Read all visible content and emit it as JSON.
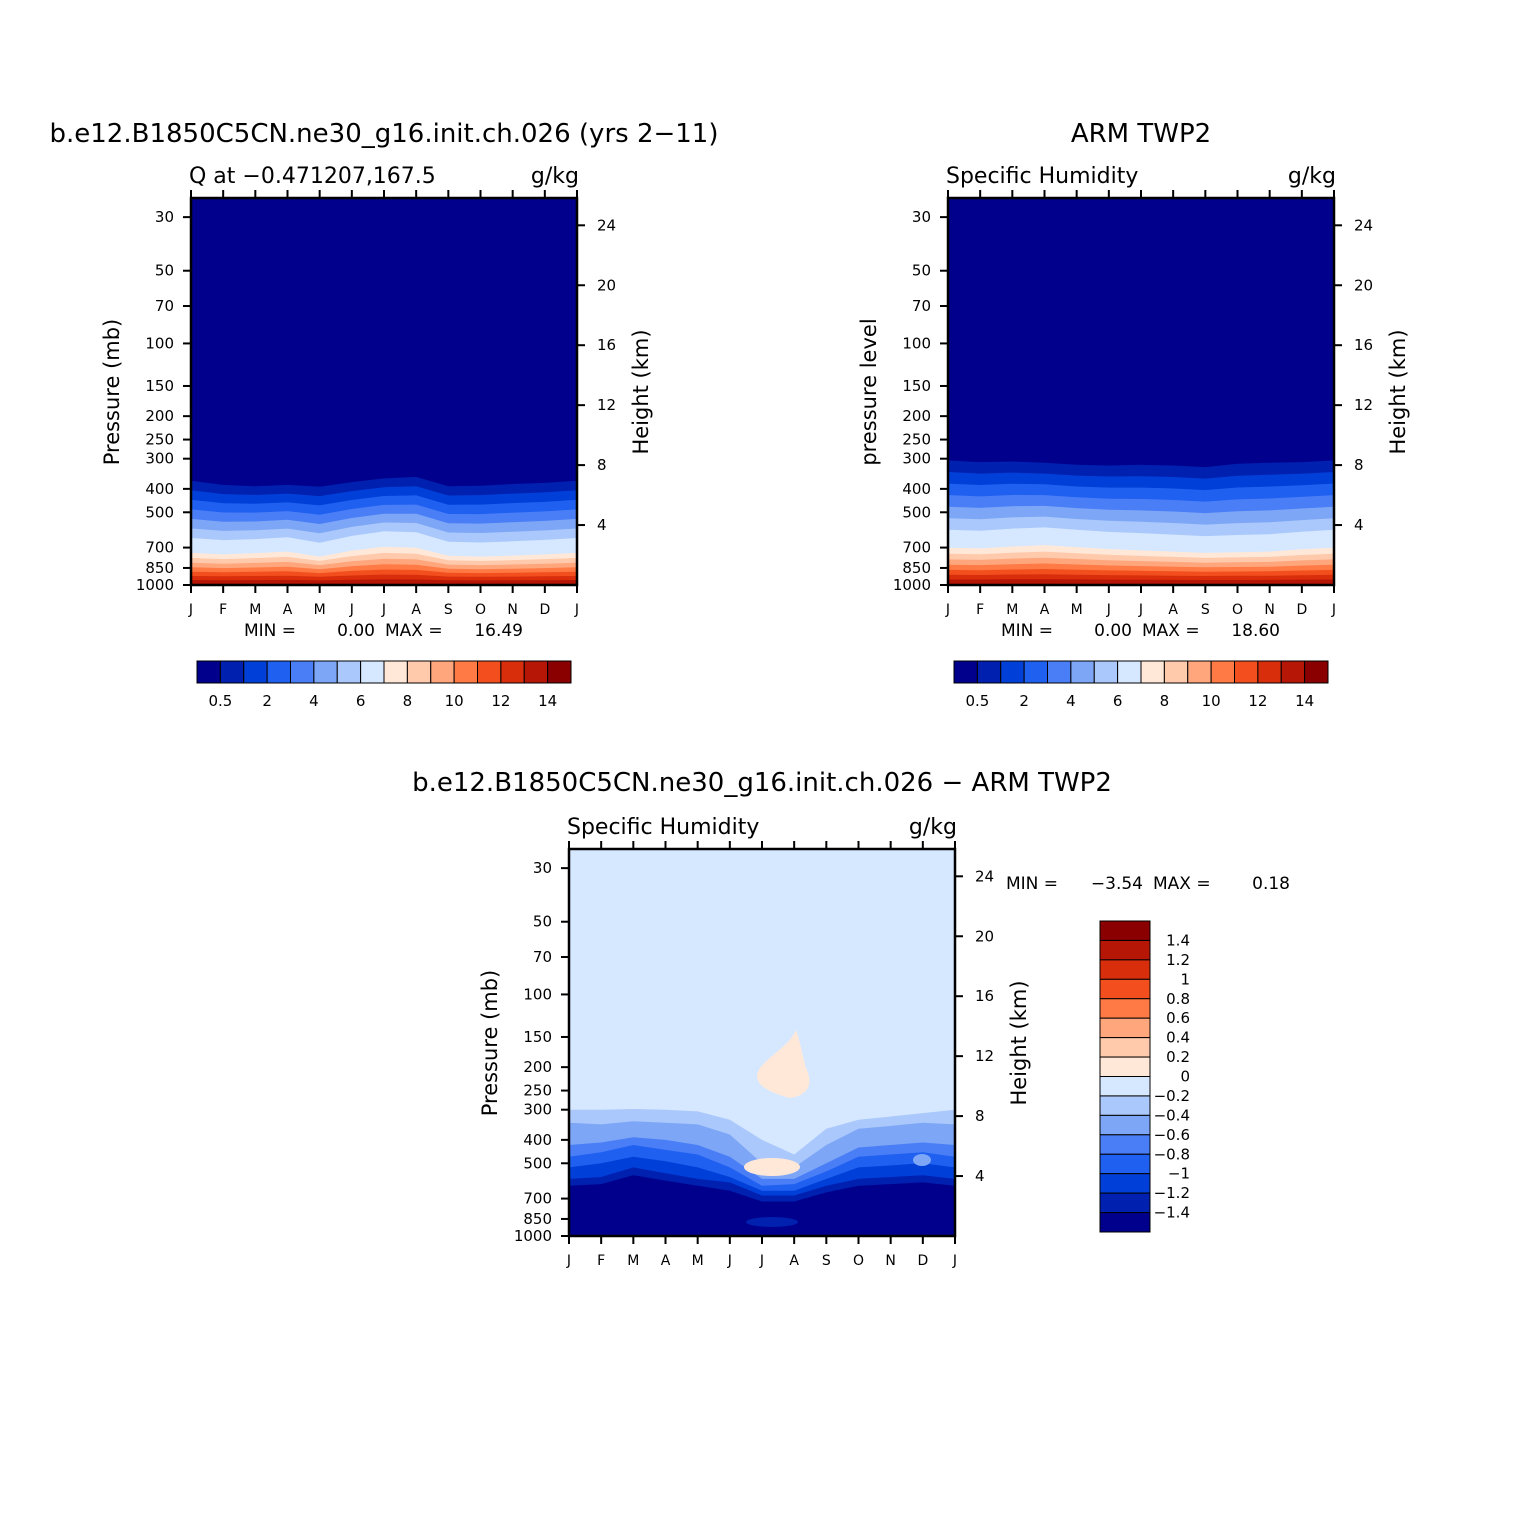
{
  "chart_data": [
    {
      "type": "heatmap",
      "title": "b.e12.B1850C5CN.ne30_g16.init.ch.026 (yrs 2-11)",
      "left_subtitle": "Q at -0.471207,167.5",
      "right_subtitle": "g/kg",
      "ylabel": "Pressure (mb)",
      "y2label": "Height (km)",
      "x_ticks": [
        "J",
        "F",
        "M",
        "A",
        "M",
        "J",
        "J",
        "A",
        "S",
        "O",
        "N",
        "D",
        "J"
      ],
      "y_ticks": [
        30,
        50,
        70,
        100,
        150,
        200,
        250,
        300,
        400,
        500,
        700,
        850,
        1000
      ],
      "y2_ticks": [
        24,
        20,
        16,
        12,
        8,
        4
      ],
      "ylim": [
        1000,
        25
      ],
      "summary": {
        "min_label": "MIN =",
        "min": "0.00",
        "max_label": "MAX =",
        "max": "16.49"
      },
      "colorbar": {
        "orientation": "horizontal",
        "levels": [
          0.5,
          1,
          2,
          3,
          4,
          5,
          6,
          7,
          8,
          9,
          10,
          11,
          12,
          13,
          14
        ],
        "tick_labels": [
          "0.5",
          "2",
          "4",
          "6",
          "8",
          "10",
          "12",
          "14"
        ],
        "colors": [
          "#00008c",
          "#0020b0",
          "#0040d8",
          "#2060f0",
          "#4a7ef6",
          "#7da6f6",
          "#aac8fb",
          "#d6e8ff",
          "#ffe8d8",
          "#ffc9ac",
          "#ffa67c",
          "#ff7a44",
          "#f34f1e",
          "#d92e0c",
          "#b51606",
          "#8a0000"
        ]
      },
      "moisture_top_hpa": [
        370,
        385,
        390,
        385,
        392,
        375,
        362,
        357,
        390,
        388,
        382,
        378,
        370
      ],
      "bottom_colors_hpa": [
        700,
        712,
        702,
        690,
        730,
        682,
        652,
        660,
        723,
        730,
        722,
        712,
        700
      ]
    },
    {
      "type": "heatmap",
      "title": "ARM TWP2",
      "left_subtitle": "Specific Humidity",
      "right_subtitle": "g/kg",
      "ylabel": "pressure level",
      "y2label": "Height (km)",
      "x_ticks": [
        "J",
        "F",
        "M",
        "A",
        "M",
        "J",
        "J",
        "A",
        "S",
        "O",
        "N",
        "D",
        "J"
      ],
      "y_ticks": [
        30,
        50,
        70,
        100,
        150,
        200,
        250,
        300,
        400,
        500,
        700,
        850,
        1000
      ],
      "y2_ticks": [
        24,
        20,
        16,
        12,
        8,
        4
      ],
      "ylim": [
        1000,
        25
      ],
      "summary": {
        "min_label": "MIN =",
        "min": "0.00",
        "max_label": "MAX =",
        "max": "18.60"
      },
      "colorbar": {
        "orientation": "horizontal",
        "levels": [
          0.5,
          1,
          2,
          3,
          4,
          5,
          6,
          7,
          8,
          9,
          10,
          11,
          12,
          13,
          14
        ],
        "tick_labels": [
          "0.5",
          "2",
          "4",
          "6",
          "8",
          "10",
          "12",
          "14"
        ],
        "colors": [
          "#00008c",
          "#0020b0",
          "#0040d8",
          "#2060f0",
          "#4a7ef6",
          "#7da6f6",
          "#aac8fb",
          "#d6e8ff",
          "#ffe8d8",
          "#ffc9ac",
          "#ffa67c",
          "#ff7a44",
          "#f34f1e",
          "#d92e0c",
          "#b51606",
          "#8a0000"
        ]
      },
      "moisture_top_hpa": [
        305,
        310,
        308,
        312,
        318,
        320,
        318,
        320,
        325,
        315,
        312,
        310,
        305
      ],
      "bottom_colors_hpa": [
        660,
        665,
        650,
        640,
        655,
        670,
        680,
        690,
        700,
        695,
        690,
        672,
        660
      ]
    },
    {
      "type": "heatmap",
      "title": "b.e12.B1850C5CN.ne30_g16.init.ch.026 - ARM TWP2",
      "left_subtitle": "Specific Humidity",
      "right_subtitle": "g/kg",
      "ylabel": "Pressure (mb)",
      "y2label": "Height (km)",
      "x_ticks": [
        "J",
        "F",
        "M",
        "A",
        "M",
        "J",
        "J",
        "A",
        "S",
        "O",
        "N",
        "D",
        "J"
      ],
      "y_ticks": [
        30,
        50,
        70,
        100,
        150,
        200,
        250,
        300,
        400,
        500,
        700,
        850,
        1000
      ],
      "y2_ticks": [
        24,
        20,
        16,
        12,
        8,
        4
      ],
      "ylim": [
        1000,
        25
      ],
      "summary": {
        "min_label": "MIN =",
        "min": "-3.54",
        "max_label": "MAX =",
        "max": "0.18"
      },
      "colorbar": {
        "orientation": "vertical",
        "levels": [
          1.4,
          1.2,
          1,
          0.8,
          0.6,
          0.4,
          0.2,
          0,
          -0.2,
          -0.4,
          -0.6,
          -0.8,
          -1,
          -1.2,
          -1.4
        ],
        "tick_labels": [
          "1.4",
          "1.2",
          "1",
          "0.8",
          "0.6",
          "0.4",
          "0.2",
          "0",
          "-0.2",
          "-0.4",
          "-0.6",
          "-0.8",
          "-1",
          "-1.2",
          "-1.4"
        ],
        "colors": [
          "#8a0000",
          "#b51606",
          "#d92e0c",
          "#f34f1e",
          "#ff7a44",
          "#ffa67c",
          "#ffc9ac",
          "#ffe8d8",
          "#d6e8ff",
          "#aac8fb",
          "#7da6f6",
          "#4a7ef6",
          "#2060f0",
          "#0040d8",
          "#0020b0",
          "#00008c"
        ]
      },
      "background_color": "#d6e8ff",
      "positive_patch_color": "#ffe8d8"
    }
  ]
}
